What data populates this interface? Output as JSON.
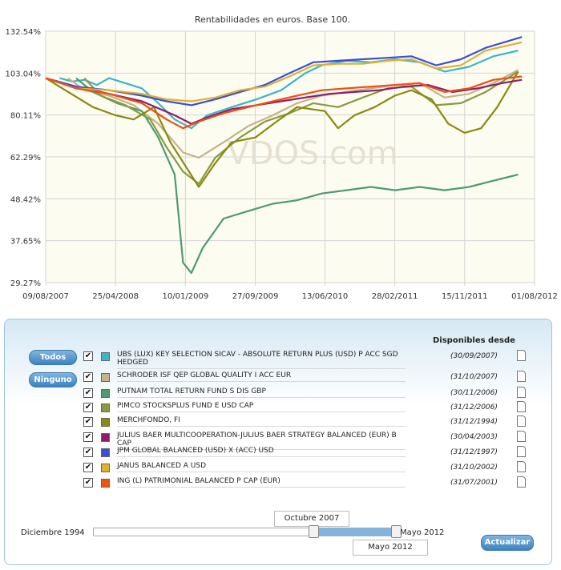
{
  "chart_data": {
    "type": "line",
    "title": "Rentabilidades en euros. Base 100.",
    "watermark": "VDOS.com",
    "x_range": [
      "2007-08-09",
      "2012-08-01"
    ],
    "x_ticks": [
      "09/08/2007",
      "25/04/2008",
      "10/01/2009",
      "27/09/2009",
      "13/06/2010",
      "28/02/2011",
      "15/11/2011",
      "01/08/2012"
    ],
    "y_ticks": [
      "29.27%",
      "37.65%",
      "48.42%",
      "62.29%",
      "80.11%",
      "103.04%",
      "132.54%"
    ],
    "y_log": true,
    "ylim": [
      29.27,
      132.54
    ],
    "grid": true,
    "series": [
      {
        "name": "UBS (LUX) KEY SELECTION SICAV - ABSOLUTE RETURN PLUS (USD) P ACC SGD HEDGED",
        "color": "#3fb3c8",
        "x": [
          "2007-09-30",
          "2007-11-15",
          "2008-01-01",
          "2008-02-15",
          "2008-04-01",
          "2008-06-01",
          "2008-08-01",
          "2008-10-01",
          "2008-12-01",
          "2009-02-01",
          "2009-04-01",
          "2009-07-01",
          "2009-10-01",
          "2010-01-01",
          "2010-04-01",
          "2010-06-01",
          "2010-09-01",
          "2010-12-01",
          "2011-03-01",
          "2011-06-01",
          "2011-09-01",
          "2011-12-01",
          "2012-03-01",
          "2012-06-01"
        ],
        "y": [
          100,
          98,
          99,
          96,
          100,
          97,
          94,
          86,
          78,
          74,
          80,
          84,
          88,
          93,
          103,
          108,
          111,
          110,
          112,
          110,
          104,
          107,
          114,
          118
        ]
      },
      {
        "name": "SCHRODER ISF QEP GLOBAL QUALITY I ACC EUR",
        "color": "#c4b48a",
        "x": [
          "2007-10-31",
          "2008-01-01",
          "2008-04-01",
          "2008-07-01",
          "2008-10-01",
          "2009-01-01",
          "2009-03-01",
          "2009-06-01",
          "2009-09-01",
          "2009-12-01",
          "2010-03-01",
          "2010-06-01",
          "2010-09-01",
          "2010-12-01",
          "2011-03-01",
          "2011-06-01",
          "2011-09-01",
          "2011-12-01",
          "2012-03-01",
          "2012-06-01"
        ],
        "y": [
          100,
          93,
          90,
          85,
          76,
          64,
          62,
          68,
          75,
          80,
          86,
          90,
          92,
          94,
          96,
          97,
          89,
          91,
          97,
          105
        ]
      },
      {
        "name": "PUTNAM TOTAL RETURN FUND S DIS GBP",
        "color": "#4f9a72",
        "x": [
          "2007-11-30",
          "2008-02-01",
          "2008-05-01",
          "2008-08-01",
          "2008-10-01",
          "2008-12-01",
          "2009-01-01",
          "2009-02-01",
          "2009-03-15",
          "2009-06-01",
          "2009-09-01",
          "2009-12-01",
          "2010-03-01",
          "2010-06-01",
          "2010-09-01",
          "2010-12-01",
          "2011-03-01",
          "2011-06-01",
          "2011-09-01",
          "2011-12-01",
          "2012-03-01",
          "2012-06-01"
        ],
        "y": [
          100,
          92,
          86,
          82,
          70,
          56,
          33,
          31,
          36,
          43,
          45,
          47,
          48,
          50,
          51,
          52,
          51,
          52,
          51,
          52,
          54,
          56
        ]
      },
      {
        "name": "PIMCO STOCKSPLUS FUND E USD CAP",
        "color": "#8a9a40",
        "x": [
          "2007-12-31",
          "2008-03-01",
          "2008-06-01",
          "2008-09-01",
          "2008-11-01",
          "2009-01-01",
          "2009-03-01",
          "2009-05-01",
          "2009-08-01",
          "2009-11-01",
          "2010-02-01",
          "2010-05-01",
          "2010-08-01",
          "2010-11-01",
          "2011-02-01",
          "2011-05-01",
          "2011-08-01",
          "2011-11-01",
          "2012-02-01",
          "2012-06-01"
        ],
        "y": [
          100,
          90,
          85,
          78,
          66,
          57,
          53,
          62,
          70,
          77,
          81,
          86,
          84,
          89,
          94,
          95,
          85,
          86,
          92,
          104
        ]
      },
      {
        "name": "MERCHFONDO, FI",
        "color": "#8a8a10",
        "x": [
          "2007-08-09",
          "2007-11-01",
          "2008-02-01",
          "2008-04-25",
          "2008-07-01",
          "2008-09-15",
          "2008-11-15",
          "2009-01-10",
          "2009-03-01",
          "2009-05-01",
          "2009-07-01",
          "2009-09-27",
          "2009-12-15",
          "2010-03-01",
          "2010-06-13",
          "2010-08-01",
          "2010-10-01",
          "2010-12-15",
          "2011-02-28",
          "2011-05-01",
          "2011-07-15",
          "2011-09-15",
          "2011-11-15",
          "2012-01-15",
          "2012-03-15",
          "2012-06-01"
        ],
        "y": [
          100,
          92,
          84,
          80,
          78,
          84,
          68,
          59,
          52,
          60,
          68,
          70,
          77,
          84,
          82,
          74,
          80,
          84,
          90,
          93,
          88,
          76,
          72,
          74,
          84,
          104
        ]
      },
      {
        "name": "JULIUS BAER MULTICOOPERATION-JULIUS BAER STRATEGY BALANCED (EUR) B CAP",
        "color": "#8b1f6e",
        "x": [
          "2007-08-09",
          "2007-12-01",
          "2008-04-01",
          "2008-08-01",
          "2008-12-01",
          "2009-02-01",
          "2009-04-01",
          "2009-07-01",
          "2009-10-01",
          "2010-01-01",
          "2010-04-01",
          "2010-07-01",
          "2010-10-01",
          "2011-01-01",
          "2011-04-01",
          "2011-07-01",
          "2011-10-01",
          "2012-01-01",
          "2012-04-01",
          "2012-06-15"
        ],
        "y": [
          100,
          95,
          91,
          87,
          80,
          76,
          79,
          83,
          85,
          87,
          89,
          91,
          92,
          93,
          95,
          96,
          92,
          94,
          97,
          99
        ]
      },
      {
        "name": "JPM GLOBAL BALANCED (USD) X (ACC) USD",
        "color": "#3a4fd8",
        "x": [
          "2007-08-09",
          "2007-12-01",
          "2008-04-01",
          "2008-08-01",
          "2008-11-01",
          "2009-02-01",
          "2009-05-01",
          "2009-08-01",
          "2009-11-01",
          "2010-02-01",
          "2010-05-01",
          "2010-08-01",
          "2010-11-01",
          "2011-02-01",
          "2011-05-01",
          "2011-08-01",
          "2011-11-01",
          "2012-02-01",
          "2012-06-15"
        ],
        "y": [
          100,
          95,
          93,
          90,
          87,
          85,
          88,
          92,
          96,
          103,
          110,
          111,
          112,
          113,
          114,
          108,
          112,
          120,
          128
        ]
      },
      {
        "name": "JANUS BALANCED A USD",
        "color": "#e0b030",
        "x": [
          "2007-08-09",
          "2007-12-01",
          "2008-04-01",
          "2008-08-01",
          "2008-11-01",
          "2009-02-01",
          "2009-05-01",
          "2009-08-01",
          "2009-11-01",
          "2010-02-01",
          "2010-05-01",
          "2010-08-01",
          "2010-11-01",
          "2011-02-01",
          "2011-05-01",
          "2011-08-01",
          "2011-11-01",
          "2012-02-01",
          "2012-06-15"
        ],
        "y": [
          100,
          94,
          93,
          91,
          88,
          87,
          89,
          93,
          95,
          101,
          108,
          109,
          109,
          111,
          112,
          106,
          108,
          118,
          124
        ]
      },
      {
        "name": "ING (L) PATRIMONIAL BALANCED P CAP (EUR)",
        "color": "#f05010",
        "x": [
          "2007-08-09",
          "2007-12-01",
          "2008-04-01",
          "2008-08-01",
          "2008-11-01",
          "2009-01-01",
          "2009-03-01",
          "2009-06-01",
          "2009-09-01",
          "2009-12-01",
          "2010-03-01",
          "2010-06-01",
          "2010-09-01",
          "2010-12-01",
          "2011-03-01",
          "2011-06-01",
          "2011-09-01",
          "2011-12-01",
          "2012-03-01",
          "2012-06-15"
        ],
        "y": [
          100,
          94,
          91,
          86,
          78,
          74,
          77,
          81,
          84,
          87,
          90,
          93,
          94,
          95,
          96,
          97,
          92,
          94,
          99,
          101
        ]
      }
    ]
  },
  "panel": {
    "header": "Disponibles desde",
    "btn_all": "Todos",
    "btn_none": "Ninguno",
    "funds": [
      {
        "name": "UBS (LUX) KEY SELECTION SICAV - ABSOLUTE RETURN PLUS (USD) P ACC SGD HEDGED",
        "date": "(30/09/2007)",
        "color": "#3fb3c8"
      },
      {
        "name": "SCHRODER ISF QEP GLOBAL QUALITY I ACC EUR",
        "date": "(31/10/2007)",
        "color": "#c4b48a"
      },
      {
        "name": "PUTNAM TOTAL RETURN FUND S DIS GBP",
        "date": "(30/11/2006)",
        "color": "#4f9a72"
      },
      {
        "name": "PIMCO STOCKSPLUS FUND E USD CAP",
        "date": "(31/12/2006)",
        "color": "#8a9a40"
      },
      {
        "name": "MERCHFONDO, FI",
        "date": "(31/12/1994)",
        "color": "#8a8a10"
      },
      {
        "name": "JULIUS BAER MULTICOOPERATION-JULIUS BAER STRATEGY BALANCED (EUR) B CAP",
        "date": "(30/04/2003)",
        "color": "#8b1f6e"
      },
      {
        "name": "JPM GLOBAL BALANCED (USD) X (ACC) USD",
        "date": "(31/12/1997)",
        "color": "#3a4fd8"
      },
      {
        "name": "JANUS BALANCED A USD",
        "date": "(31/10/2002)",
        "color": "#e0b030"
      },
      {
        "name": "ING (L) PATRIMONIAL BALANCED P CAP (EUR)",
        "date": "(31/07/2001)",
        "color": "#f05010"
      }
    ],
    "check_glyph": "✔",
    "slider": {
      "min_label": "Diciembre 1994",
      "max_label": "Mayo 2012",
      "from_value": "Octubre 2007",
      "to_value": "Mayo 2012",
      "from_fraction": 0.728,
      "to_fraction": 1.0
    },
    "update_label": "Actualizar"
  }
}
